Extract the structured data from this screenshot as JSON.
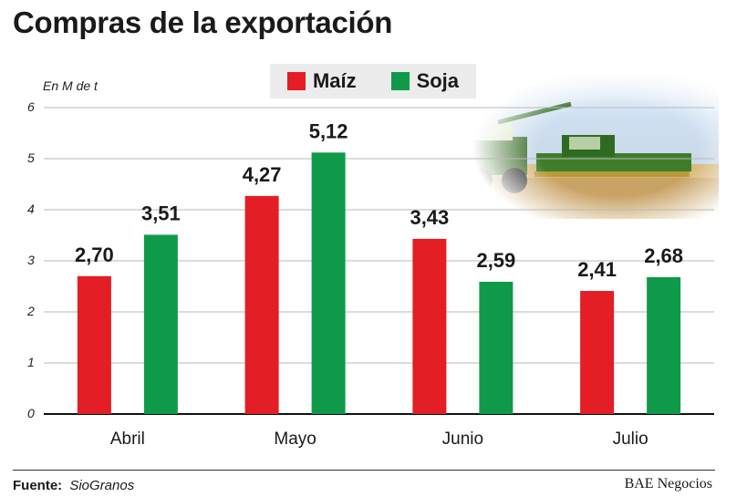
{
  "header": {
    "title": "Compras de la exportación"
  },
  "legend": {
    "items": [
      {
        "label": "Maíz",
        "color": "#e31e24"
      },
      {
        "label": "Soja",
        "color": "#0f9a4a"
      }
    ]
  },
  "chart_data": {
    "type": "bar",
    "unit_label": "En M de t",
    "categories": [
      "Abril",
      "Mayo",
      "Junio",
      "Julio"
    ],
    "series": [
      {
        "name": "Maíz",
        "color": "#e31e24",
        "values": [
          2.7,
          4.27,
          3.43,
          2.41
        ],
        "labels": [
          "2,70",
          "4,27",
          "3,43",
          "2,41"
        ]
      },
      {
        "name": "Soja",
        "color": "#0f9a4a",
        "values": [
          3.51,
          5.12,
          2.59,
          2.68
        ],
        "labels": [
          "3,51",
          "5,12",
          "2,59",
          "2,68"
        ]
      }
    ],
    "ylim": [
      0,
      6
    ],
    "yticks": [
      "0",
      "1",
      "2",
      "3",
      "4",
      "5",
      "6"
    ],
    "grid": true,
    "legend_position": "top-center"
  },
  "footer": {
    "source_label": "Fuente:",
    "source_value": "SioGranos",
    "credit": "BAE Negocios"
  }
}
